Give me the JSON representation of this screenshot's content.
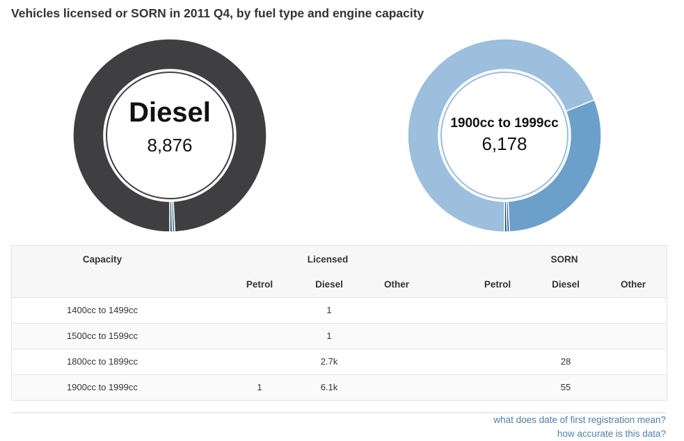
{
  "page": {
    "title": "Vehicles licensed or SORN in 2011 Q4, by fuel type and engine capacity"
  },
  "chart_data": [
    {
      "type": "pie",
      "variant": "donut",
      "center_label": "Diesel",
      "center_value": "8,876",
      "categories": [
        "Diesel",
        "Petrol",
        "Other"
      ],
      "values": [
        8876,
        1,
        0
      ],
      "colors": [
        "#3f3f41",
        "#3a7c8c",
        "#1f4f7a"
      ]
    },
    {
      "type": "pie",
      "variant": "donut",
      "center_label": "1900cc to 1999cc",
      "center_value": "6,178",
      "categories": [
        "1900cc to 1999cc",
        "1800cc to 1899cc",
        "1500cc to 1599cc",
        "1400cc to 1499cc"
      ],
      "values": [
        6178,
        2700,
        1,
        1
      ],
      "colors": [
        "#9bbfdc",
        "#6d9fcb",
        "#2c5f8e",
        "#1c3f66"
      ]
    }
  ],
  "table": {
    "header": {
      "capacity": "Capacity",
      "licensed": "Licensed",
      "sorn": "SORN",
      "sub": [
        "Petrol",
        "Diesel",
        "Other",
        "Petrol",
        "Diesel",
        "Other"
      ]
    },
    "rows": [
      {
        "capacity": "1400cc to 1499cc",
        "l_petrol": "",
        "l_diesel": "1",
        "l_other": "",
        "s_petrol": "",
        "s_diesel": "",
        "s_other": ""
      },
      {
        "capacity": "1500cc to 1599cc",
        "l_petrol": "",
        "l_diesel": "1",
        "l_other": "",
        "s_petrol": "",
        "s_diesel": "",
        "s_other": ""
      },
      {
        "capacity": "1800cc to 1899cc",
        "l_petrol": "",
        "l_diesel": "2.7k",
        "l_other": "",
        "s_petrol": "",
        "s_diesel": "28",
        "s_other": ""
      },
      {
        "capacity": "1900cc to 1999cc",
        "l_petrol": "1",
        "l_diesel": "6.1k",
        "l_other": "",
        "s_petrol": "",
        "s_diesel": "55",
        "s_other": ""
      }
    ]
  },
  "footer": {
    "link1": "what does date of first registration mean?",
    "link2": "how accurate is this data?"
  }
}
